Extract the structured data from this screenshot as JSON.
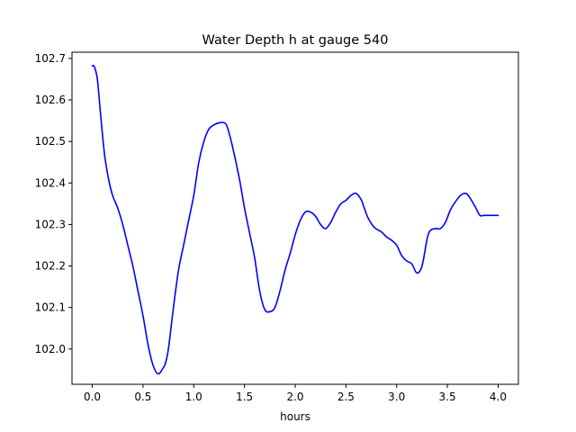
{
  "chart_data": {
    "type": "line",
    "title": "Water Depth h at gauge 540",
    "xlabel": "hours",
    "ylabel": "",
    "xlim": [
      -0.2,
      4.2
    ],
    "ylim": [
      101.915,
      102.715
    ],
    "x_ticks": [
      "0.0",
      "0.5",
      "1.0",
      "1.5",
      "2.0",
      "2.5",
      "3.0",
      "3.5",
      "4.0"
    ],
    "y_ticks": [
      "102.0",
      "102.1",
      "102.2",
      "102.3",
      "102.4",
      "102.5",
      "102.6",
      "102.7"
    ],
    "grid": false,
    "legend": "none",
    "series": [
      {
        "color": "#0000ff",
        "x": [
          0.0,
          0.02,
          0.05,
          0.08,
          0.12,
          0.16,
          0.2,
          0.25,
          0.3,
          0.35,
          0.4,
          0.45,
          0.5,
          0.55,
          0.6,
          0.65,
          0.7,
          0.72,
          0.75,
          0.8,
          0.85,
          0.9,
          0.95,
          1.0,
          1.05,
          1.1,
          1.15,
          1.2,
          1.25,
          1.3,
          1.33,
          1.38,
          1.45,
          1.5,
          1.55,
          1.6,
          1.65,
          1.7,
          1.75,
          1.8,
          1.85,
          1.9,
          1.95,
          2.0,
          2.05,
          2.1,
          2.15,
          2.2,
          2.25,
          2.3,
          2.35,
          2.4,
          2.45,
          2.5,
          2.55,
          2.6,
          2.65,
          2.68,
          2.72,
          2.78,
          2.85,
          2.9,
          2.95,
          3.0,
          3.05,
          3.1,
          3.15,
          3.2,
          3.25,
          3.3,
          3.33,
          3.38,
          3.43,
          3.48,
          3.53,
          3.58,
          3.63,
          3.68,
          3.72,
          3.78,
          3.82,
          3.86,
          3.9,
          3.94,
          4.0
        ],
        "y": [
          102.682,
          102.68,
          102.65,
          102.57,
          102.47,
          102.41,
          102.37,
          102.34,
          102.3,
          102.25,
          102.2,
          102.14,
          102.08,
          102.01,
          101.96,
          101.94,
          101.955,
          101.965,
          102.0,
          102.1,
          102.19,
          102.25,
          102.31,
          102.37,
          102.45,
          102.5,
          102.53,
          102.54,
          102.545,
          102.545,
          102.535,
          102.49,
          102.41,
          102.34,
          102.28,
          102.22,
          102.14,
          102.095,
          102.09,
          102.1,
          102.14,
          102.19,
          102.23,
          102.275,
          102.31,
          102.33,
          102.33,
          102.32,
          102.3,
          102.29,
          102.305,
          102.33,
          102.35,
          102.358,
          102.37,
          102.375,
          102.36,
          102.34,
          102.315,
          102.293,
          102.282,
          102.27,
          102.262,
          102.25,
          102.225,
          102.212,
          102.205,
          102.183,
          102.2,
          102.265,
          102.285,
          102.29,
          102.29,
          102.305,
          102.335,
          102.355,
          102.37,
          102.375,
          102.365,
          102.34,
          102.322,
          102.322,
          102.322,
          102.322,
          102.322
        ]
      }
    ]
  }
}
